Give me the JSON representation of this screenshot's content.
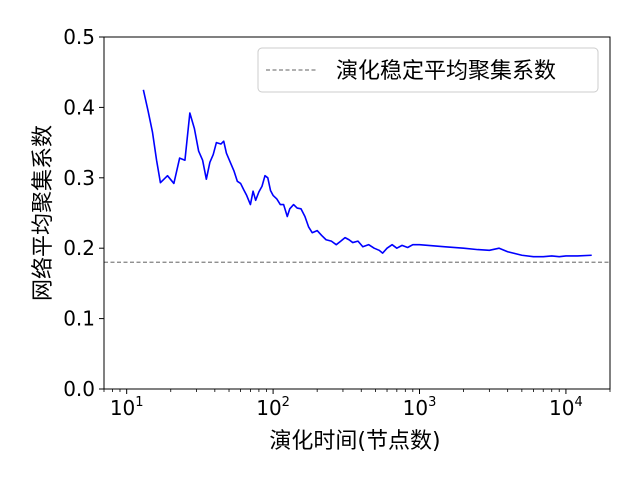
{
  "chart_data": {
    "type": "line",
    "xlabel": "演化时间(节点数)",
    "ylabel": "网络平均聚集系数",
    "xscale": "log",
    "xlim": [
      7,
      20000
    ],
    "ylim": [
      0.0,
      0.5
    ],
    "x_ticks": [
      {
        "base": "10",
        "exp": "1",
        "value": 10
      },
      {
        "base": "10",
        "exp": "2",
        "value": 100
      },
      {
        "base": "10",
        "exp": "3",
        "value": 1000
      },
      {
        "base": "10",
        "exp": "4",
        "value": 10000
      }
    ],
    "y_ticks": [
      "0.0",
      "0.1",
      "0.2",
      "0.3",
      "0.4",
      "0.5"
    ],
    "grid": false,
    "legend_position": "top-right",
    "series": [
      {
        "name": "",
        "color": "#0000ff",
        "style": "solid",
        "points": [
          [
            13,
            0.425
          ],
          [
            14,
            0.395
          ],
          [
            15,
            0.365
          ],
          [
            16,
            0.325
          ],
          [
            17,
            0.293
          ],
          [
            19,
            0.303
          ],
          [
            21,
            0.292
          ],
          [
            23,
            0.328
          ],
          [
            25,
            0.325
          ],
          [
            27,
            0.392
          ],
          [
            29,
            0.37
          ],
          [
            31,
            0.338
          ],
          [
            33,
            0.325
          ],
          [
            35,
            0.298
          ],
          [
            37,
            0.322
          ],
          [
            39,
            0.333
          ],
          [
            41,
            0.35
          ],
          [
            44,
            0.348
          ],
          [
            46,
            0.352
          ],
          [
            48,
            0.335
          ],
          [
            51,
            0.322
          ],
          [
            54,
            0.31
          ],
          [
            57,
            0.295
          ],
          [
            60,
            0.292
          ],
          [
            63,
            0.283
          ],
          [
            66,
            0.275
          ],
          [
            70,
            0.262
          ],
          [
            73,
            0.281
          ],
          [
            76,
            0.268
          ],
          [
            80,
            0.28
          ],
          [
            84,
            0.288
          ],
          [
            88,
            0.303
          ],
          [
            92,
            0.3
          ],
          [
            96,
            0.282
          ],
          [
            100,
            0.275
          ],
          [
            106,
            0.27
          ],
          [
            112,
            0.262
          ],
          [
            118,
            0.262
          ],
          [
            125,
            0.245
          ],
          [
            130,
            0.256
          ],
          [
            138,
            0.262
          ],
          [
            146,
            0.257
          ],
          [
            155,
            0.256
          ],
          [
            165,
            0.245
          ],
          [
            175,
            0.23
          ],
          [
            185,
            0.222
          ],
          [
            200,
            0.225
          ],
          [
            215,
            0.218
          ],
          [
            230,
            0.212
          ],
          [
            250,
            0.21
          ],
          [
            270,
            0.205
          ],
          [
            290,
            0.21
          ],
          [
            310,
            0.215
          ],
          [
            330,
            0.212
          ],
          [
            350,
            0.208
          ],
          [
            380,
            0.21
          ],
          [
            410,
            0.202
          ],
          [
            450,
            0.205
          ],
          [
            490,
            0.2
          ],
          [
            530,
            0.197
          ],
          [
            560,
            0.193
          ],
          [
            600,
            0.2
          ],
          [
            650,
            0.205
          ],
          [
            700,
            0.2
          ],
          [
            760,
            0.204
          ],
          [
            830,
            0.201
          ],
          [
            900,
            0.205
          ],
          [
            1000,
            0.205
          ],
          [
            1500,
            0.202
          ],
          [
            2000,
            0.2
          ],
          [
            2500,
            0.198
          ],
          [
            3000,
            0.197
          ],
          [
            3500,
            0.2
          ],
          [
            4000,
            0.195
          ],
          [
            5000,
            0.19
          ],
          [
            6000,
            0.188
          ],
          [
            7000,
            0.188
          ],
          [
            8000,
            0.189
          ],
          [
            9000,
            0.188
          ],
          [
            10000,
            0.189
          ],
          [
            12000,
            0.189
          ],
          [
            15000,
            0.19
          ]
        ]
      },
      {
        "name": "演化稳定平均聚集系数",
        "color": "#808080",
        "style": "dashed",
        "type": "hline",
        "y": 0.18
      }
    ]
  }
}
